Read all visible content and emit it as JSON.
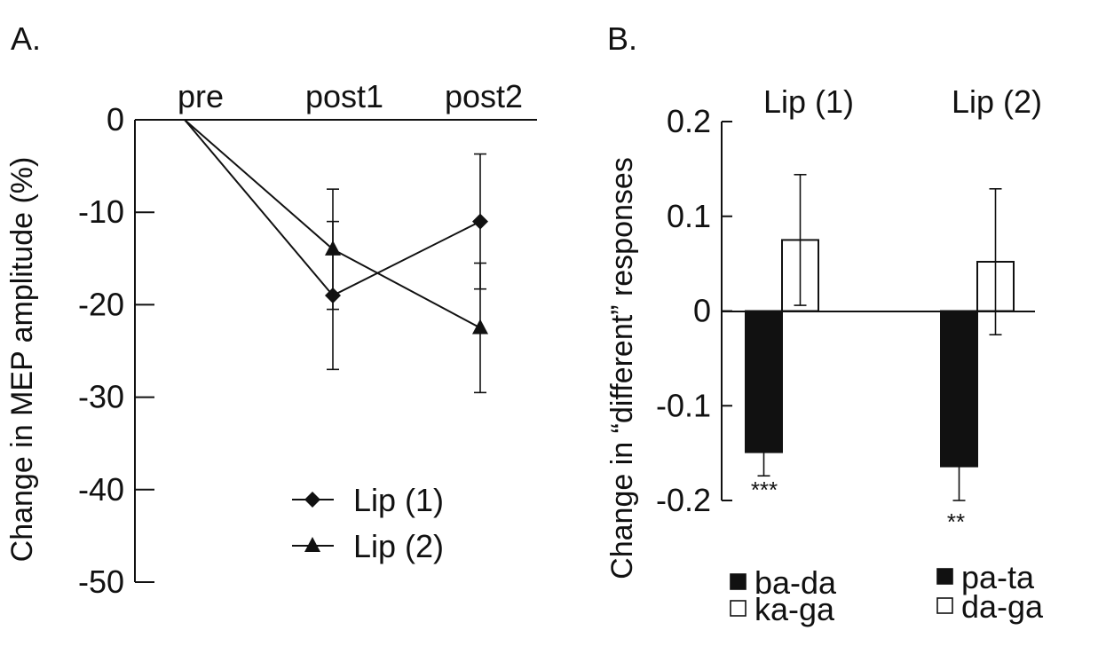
{
  "chart_data": [
    {
      "panel_label": "A.",
      "type": "line",
      "ylabel": "Change in MEP amplitude (%)",
      "categories": [
        "pre",
        "post1",
        "post2"
      ],
      "yticks": [
        "0",
        "-10",
        "-20",
        "-30",
        "-40",
        "-50"
      ],
      "ylim": [
        -50,
        0
      ],
      "series": [
        {
          "name": "Lip (1)",
          "marker": "diamond",
          "values": [
            0,
            -19,
            -11
          ],
          "errors": [
            0,
            8,
            7.3
          ]
        },
        {
          "name": "Lip (2)",
          "marker": "triangle",
          "values": [
            0,
            -14,
            -22.5
          ],
          "errors": [
            0,
            6.5,
            7
          ]
        }
      ],
      "legend": [
        "Lip (1)",
        "Lip (2)"
      ],
      "legend_position": "lower-right"
    },
    {
      "panel_label": "B.",
      "type": "bar",
      "ylabel": "Change in “different” responses",
      "yticks": [
        "0.2",
        "0.1",
        "0",
        "-0.1",
        "-0.2"
      ],
      "ylim": [
        -0.2,
        0.2
      ],
      "groups": [
        {
          "title": "Lip (1)",
          "bars": [
            {
              "name": "ba-da",
              "value": -0.149,
              "error": 0.025,
              "fill": "#111111"
            },
            {
              "name": "ka-ga",
              "value": 0.075,
              "error": 0.069,
              "fill": "#ffffff"
            }
          ],
          "significance": "***",
          "legend": [
            {
              "label": "ba-da",
              "fill": "#111111"
            },
            {
              "label": "ka-ga",
              "fill": "#ffffff"
            }
          ]
        },
        {
          "title": "Lip (2)",
          "bars": [
            {
              "name": "pa-ta",
              "value": -0.164,
              "error": 0.036,
              "fill": "#111111"
            },
            {
              "name": "da-ga",
              "value": 0.052,
              "error": 0.077,
              "fill": "#ffffff"
            }
          ],
          "significance": "**",
          "legend": [
            {
              "label": "pa-ta",
              "fill": "#111111"
            },
            {
              "label": "da-ga",
              "fill": "#ffffff"
            }
          ]
        }
      ]
    }
  ]
}
